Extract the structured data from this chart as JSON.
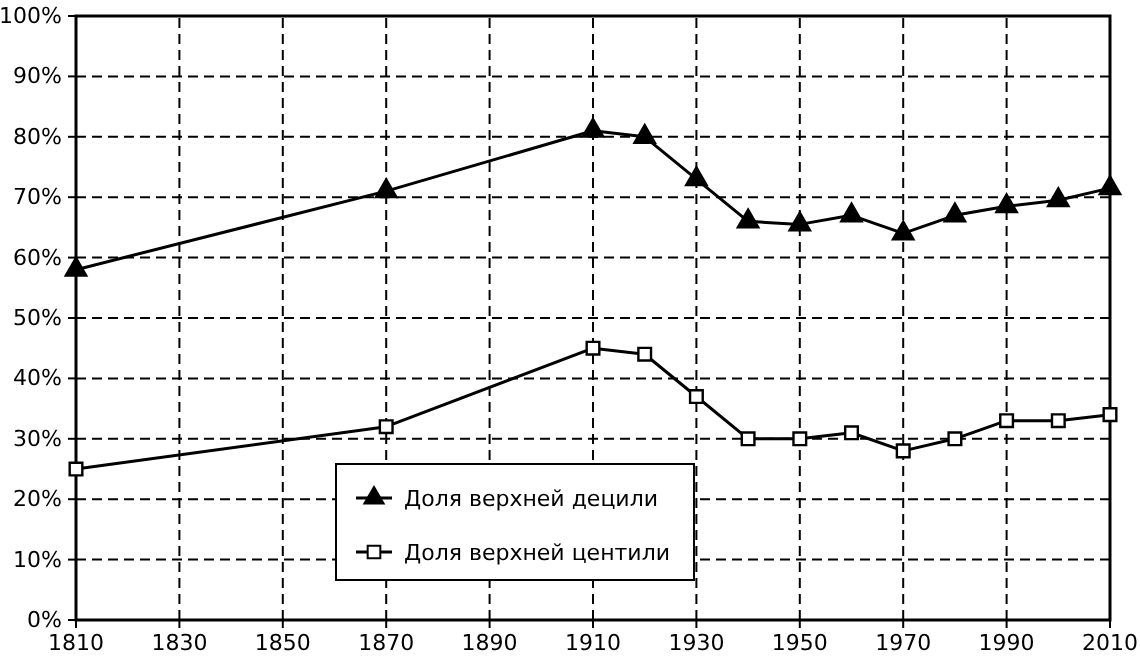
{
  "chart_data": {
    "type": "line",
    "x": [
      1810,
      1870,
      1910,
      1920,
      1930,
      1940,
      1950,
      1960,
      1970,
      1980,
      1990,
      2000,
      2010
    ],
    "series": [
      {
        "name": "Доля верхней децили",
        "color": "#000000",
        "marker": "triangle",
        "values": [
          58,
          71,
          81,
          80,
          73,
          66,
          65.5,
          67,
          64,
          67,
          68.5,
          69.5,
          71.5
        ]
      },
      {
        "name": "Доля верхней центили",
        "color": "#000000",
        "marker": "square",
        "values": [
          25,
          32,
          45,
          44,
          37,
          30,
          30,
          31,
          28,
          30,
          33,
          33,
          34
        ]
      }
    ],
    "xlim": [
      1810,
      2010
    ],
    "xticks": [
      1810,
      1830,
      1850,
      1870,
      1890,
      1910,
      1930,
      1950,
      1970,
      1990,
      2010
    ],
    "ylim": [
      0,
      100
    ],
    "yticks": [
      {
        "value": 0,
        "label": "0%"
      },
      {
        "value": 10,
        "label": "10%"
      },
      {
        "value": 20,
        "label": "20%"
      },
      {
        "value": 30,
        "label": "30%"
      },
      {
        "value": 40,
        "label": "40%"
      },
      {
        "value": 50,
        "label": "50%"
      },
      {
        "value": 60,
        "label": "60%"
      },
      {
        "value": 70,
        "label": "70%"
      },
      {
        "value": 80,
        "label": "80%"
      },
      {
        "value": 90,
        "label": "90%"
      },
      {
        "value": 100,
        "label": "100%"
      }
    ],
    "grid": true,
    "legend": "bottom",
    "line_style": "solid"
  }
}
